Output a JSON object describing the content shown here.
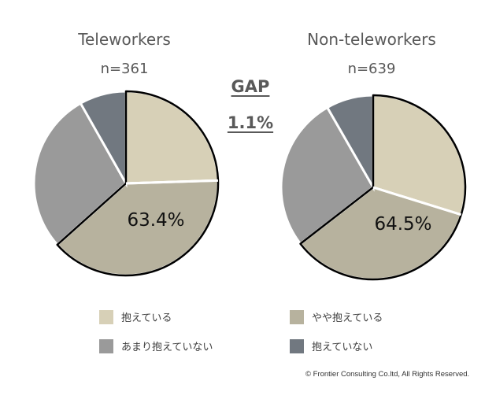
{
  "gap": {
    "label": "GAP",
    "value": "1.1%"
  },
  "chart_data": [
    {
      "type": "pie",
      "title": "Teleworkers",
      "subtitle": "n=361",
      "annotation": "63.4%",
      "series": [
        {
          "values": [
            24.5,
            38.9,
            28.4,
            8.2
          ]
        }
      ],
      "categories": [
        "抱えている",
        "やや抱えている",
        "あまり抱えていない",
        "抱えていない"
      ],
      "colors": [
        "#d7d0b7",
        "#b7b29e",
        "#9a9a9a",
        "#717880"
      ]
    },
    {
      "type": "pie",
      "title": "Non-teleworkers",
      "subtitle": "n=639",
      "annotation": "64.5%",
      "series": [
        {
          "values": [
            29.8,
            34.7,
            27.2,
            8.3
          ]
        }
      ],
      "categories": [
        "抱えている",
        "やや抱えている",
        "あまり抱えていない",
        "抱えていない"
      ],
      "colors": [
        "#d7d0b7",
        "#b7b29e",
        "#9a9a9a",
        "#717880"
      ]
    }
  ],
  "legend": [
    {
      "label": "抱えている",
      "color": "#d7d0b7"
    },
    {
      "label": "やや抱えている",
      "color": "#b7b29e"
    },
    {
      "label": "あまり抱えていない",
      "color": "#9a9a9a"
    },
    {
      "label": "抱えていない",
      "color": "#717880"
    }
  ],
  "copyright": "© Frontier Consulting Co.ltd, All Rights Reserved."
}
